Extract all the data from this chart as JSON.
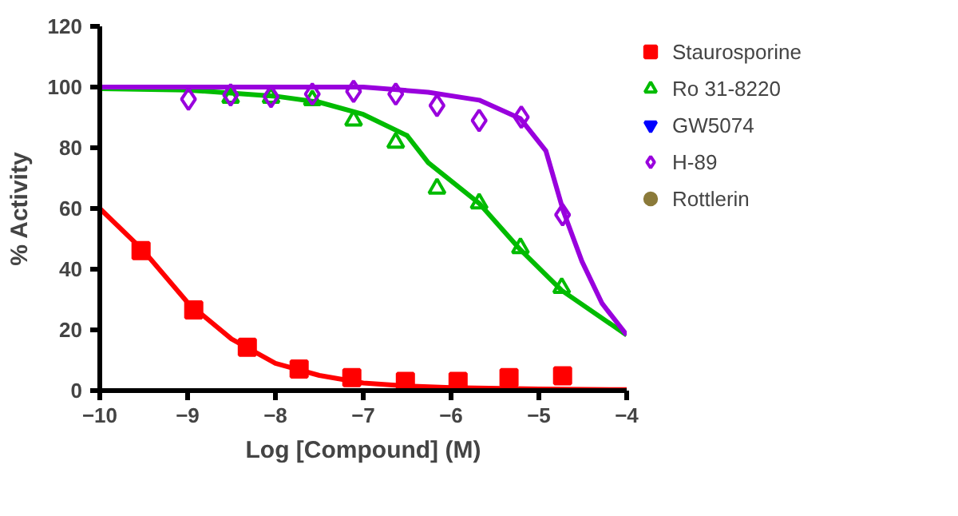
{
  "chart_data": {
    "type": "scatter",
    "xlabel": "Log [Compound] (M)",
    "ylabel": "% Activity",
    "xlim": [
      -10,
      -4
    ],
    "ylim": [
      0,
      120
    ],
    "xticks": [
      -10,
      -9,
      -8,
      -7,
      -6,
      -5,
      -4
    ],
    "yticks": [
      0,
      20,
      40,
      60,
      80,
      100,
      120
    ],
    "grid": false,
    "legend": "right",
    "line_style": "solid",
    "series": [
      {
        "name": "Staurosporine",
        "color": "#ff0000",
        "marker": "square",
        "x": [
          -9.53,
          -8.93,
          -8.32,
          -7.73,
          -7.13,
          -6.52,
          -5.92,
          -5.34,
          -4.73
        ],
        "values": [
          46.1,
          26.6,
          14.3,
          7.1,
          4.3,
          3.0,
          3.0,
          4.3,
          4.9
        ]
      },
      {
        "name": "Ro 31-8220",
        "color": "#00bb00",
        "marker": "triangle",
        "x": [
          -8.51,
          -8.05,
          -7.58,
          -7.11,
          -6.63,
          -6.16,
          -5.68,
          -5.21,
          -4.74
        ],
        "values": [
          96.5,
          96.5,
          95.7,
          89.0,
          81.7,
          66.6,
          61.7,
          47.0,
          33.9
        ]
      },
      {
        "name": "GW5074",
        "color": "#0000ff",
        "marker": "inverted_triangle"
      },
      {
        "name": "H-89",
        "color": "#9900dd",
        "marker": "diamond",
        "x": [
          -8.99,
          -8.51,
          -8.05,
          -7.58,
          -7.11,
          -6.63,
          -6.16,
          -5.68,
          -5.2,
          -4.73
        ],
        "values": [
          96.0,
          97.4,
          96.9,
          97.7,
          98.6,
          97.7,
          93.9,
          89.0,
          90.1,
          57.9
        ]
      },
      {
        "name": "Rottlerin",
        "color": "#8b7a3a",
        "marker": "circle"
      },
      {
        "type": "line",
        "color": "#ff0000",
        "x": [
          -10,
          -9.5,
          -9,
          -8.5,
          -8,
          -7.5,
          -7,
          -6.5,
          -6,
          -5,
          -4
        ],
        "values": [
          60,
          46,
          29,
          17,
          9,
          5,
          2.5,
          1.5,
          1,
          0.5,
          0.3
        ]
      },
      {
        "type": "line",
        "color": "#00bb00",
        "x": [
          -10,
          -9,
          -8,
          -7.5,
          -7,
          -6.5,
          -6.26,
          -5.68,
          -5.21,
          -4.74,
          -4
        ],
        "values": [
          99.5,
          99,
          97,
          95,
          91,
          84,
          75.1,
          61.7,
          46.4,
          33,
          18.3
        ]
      },
      {
        "type": "line",
        "color": "#9900dd",
        "x": [
          -10,
          -8,
          -7,
          -6.26,
          -5.68,
          -5.21,
          -4.92,
          -4.72,
          -4.51,
          -4.28,
          -4
        ],
        "values": [
          100,
          100,
          100,
          98.3,
          95.7,
          89.6,
          79,
          59,
          42.6,
          28.7,
          18.3
        ]
      }
    ]
  }
}
